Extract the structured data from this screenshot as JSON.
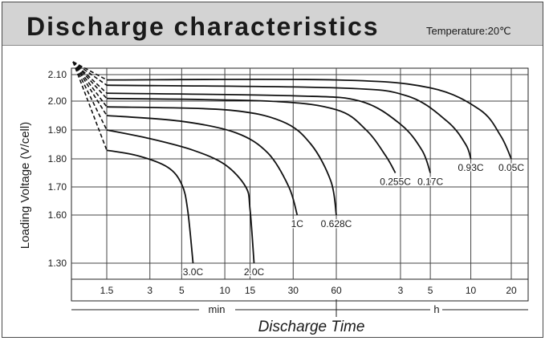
{
  "title": "Discharge characteristics",
  "subtitle": "Temperature:20℃",
  "chart_data": {
    "type": "line",
    "title": "Discharge characteristics",
    "subtitle": "Temperature:20℃",
    "xlabel": "Discharge Time",
    "ylabel": "Loading Voltage (V/cell)",
    "x_scale": "log",
    "x_unit_labels": [
      "min",
      "h"
    ],
    "x_ticks": [
      {
        "label": "1.5",
        "minutes": 1.5
      },
      {
        "label": "3",
        "minutes": 3
      },
      {
        "label": "5",
        "minutes": 5
      },
      {
        "label": "10",
        "minutes": 10
      },
      {
        "label": "15",
        "minutes": 15
      },
      {
        "label": "30",
        "minutes": 30
      },
      {
        "label": "60",
        "minutes": 60
      },
      {
        "label": "3",
        "minutes": 180
      },
      {
        "label": "5",
        "minutes": 300
      },
      {
        "label": "10",
        "minutes": 600
      },
      {
        "label": "20",
        "minutes": 1200
      }
    ],
    "y_ticks": [
      {
        "label": "2.10",
        "value": 2.1
      },
      {
        "label": "2.00",
        "value": 2.0
      },
      {
        "label": "1.90",
        "value": 1.9
      },
      {
        "label": "1.80",
        "value": 1.8
      },
      {
        "label": "1.70",
        "value": 1.7
      },
      {
        "label": "1.60",
        "value": 1.6
      },
      {
        "label": "1.30",
        "value": 1.3
      }
    ],
    "grid": true,
    "series": [
      {
        "name": "3.0C",
        "points": [
          [
            1.5,
            1.83
          ],
          [
            2.5,
            1.81
          ],
          [
            4.0,
            1.77
          ],
          [
            5.0,
            1.71
          ],
          [
            5.5,
            1.62
          ],
          [
            6.0,
            1.3
          ]
        ]
      },
      {
        "name": "2.0C",
        "points": [
          [
            1.5,
            1.9
          ],
          [
            3.0,
            1.87
          ],
          [
            6.0,
            1.83
          ],
          [
            10.0,
            1.78
          ],
          [
            14.0,
            1.7
          ],
          [
            15.0,
            1.62
          ],
          [
            16.0,
            1.3
          ]
        ]
      },
      {
        "name": "1C",
        "points": [
          [
            1.5,
            1.95
          ],
          [
            5.0,
            1.93
          ],
          [
            12.0,
            1.89
          ],
          [
            20.0,
            1.82
          ],
          [
            28.0,
            1.7
          ],
          [
            32.0,
            1.6
          ]
        ]
      },
      {
        "name": "0.628C",
        "points": [
          [
            1.5,
            1.98
          ],
          [
            10.0,
            1.97
          ],
          [
            25.0,
            1.93
          ],
          [
            40.0,
            1.85
          ],
          [
            55.0,
            1.72
          ],
          [
            60.0,
            1.6
          ]
        ]
      },
      {
        "name": "0.255C",
        "points": [
          [
            1.5,
            2.01
          ],
          [
            20.0,
            2.0
          ],
          [
            60.0,
            1.97
          ],
          [
            100.0,
            1.9
          ],
          [
            140.0,
            1.81
          ],
          [
            165.0,
            1.75
          ]
        ]
      },
      {
        "name": "0.17C",
        "points": [
          [
            1.5,
            2.03
          ],
          [
            30.0,
            2.02
          ],
          [
            90.0,
            2.0
          ],
          [
            180.0,
            1.92
          ],
          [
            260.0,
            1.83
          ],
          [
            300.0,
            1.75
          ]
        ]
      },
      {
        "name": "0.93C",
        "points": [
          [
            1.5,
            2.06
          ],
          [
            60.0,
            2.05
          ],
          [
            200.0,
            2.02
          ],
          [
            400.0,
            1.93
          ],
          [
            550.0,
            1.85
          ],
          [
            600.0,
            1.8
          ]
        ]
      },
      {
        "name": "0.05C",
        "points": [
          [
            1.5,
            2.08
          ],
          [
            60.0,
            2.08
          ],
          [
            300.0,
            2.05
          ],
          [
            700.0,
            1.97
          ],
          [
            1000.0,
            1.88
          ],
          [
            1200.0,
            1.8
          ]
        ]
      }
    ]
  }
}
